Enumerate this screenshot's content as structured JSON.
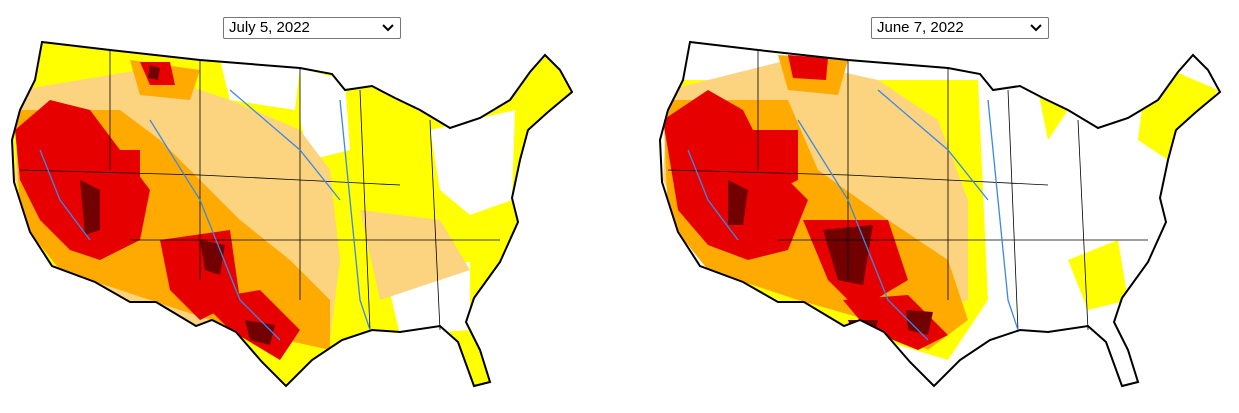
{
  "dropdowns": [
    {
      "selected": "July 5, 2022"
    },
    {
      "selected": "June 7, 2022"
    }
  ]
}
